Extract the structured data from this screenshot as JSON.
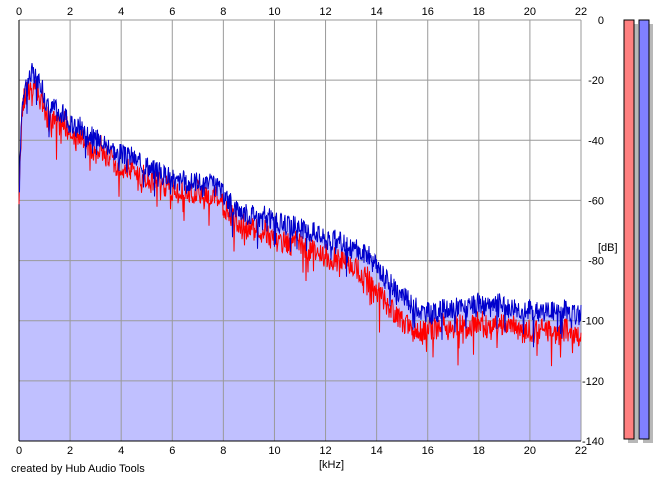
{
  "credit": "created by Hub Audio Tools",
  "chart_data": {
    "type": "line",
    "title": "",
    "xlabel": "[kHz]",
    "ylabel": "[dB]",
    "xlim": [
      0,
      22
    ],
    "ylim": [
      -140,
      0
    ],
    "x_ticks": [
      0,
      2,
      4,
      6,
      8,
      10,
      12,
      14,
      16,
      18,
      20,
      22
    ],
    "y_ticks": [
      0,
      -20,
      -40,
      -60,
      -80,
      -100,
      -120,
      -140
    ],
    "grid": true,
    "fill_color": "#c0c0ff",
    "series": [
      {
        "color": "#0000cc",
        "x": [
          0.0,
          0.05,
          0.1,
          0.2,
          0.3,
          0.4,
          0.5,
          0.6,
          0.7,
          0.8,
          0.9,
          1.0,
          1.2,
          1.4,
          1.6,
          1.8,
          2.0,
          2.2,
          2.4,
          2.6,
          2.8,
          3.0,
          3.2,
          3.4,
          3.6,
          3.8,
          4.0,
          4.2,
          4.4,
          4.6,
          4.8,
          5.0,
          5.2,
          5.4,
          5.6,
          5.8,
          6.0,
          6.2,
          6.4,
          6.6,
          6.8,
          7.0,
          7.2,
          7.4,
          7.6,
          7.8,
          8.0,
          8.2,
          8.4,
          8.6,
          8.8,
          9.0,
          9.2,
          9.4,
          9.6,
          9.8,
          10.0,
          10.2,
          10.4,
          10.6,
          10.8,
          11.0,
          11.2,
          11.4,
          11.6,
          11.8,
          12.0,
          12.2,
          12.4,
          12.6,
          12.8,
          13.0,
          13.2,
          13.4,
          13.6,
          13.8,
          14.0,
          14.2,
          14.4,
          14.6,
          14.8,
          15.0,
          15.2,
          15.4,
          15.6,
          15.8,
          16.0,
          16.2,
          16.4,
          16.6,
          16.8,
          17.0,
          17.2,
          17.4,
          17.6,
          17.8,
          18.0,
          18.2,
          18.4,
          18.6,
          18.8,
          19.0,
          19.2,
          19.4,
          19.6,
          19.8,
          20.0,
          20.2,
          20.4,
          20.6,
          20.8,
          21.0,
          21.2,
          21.4,
          21.6,
          21.8,
          22.0
        ],
        "y": [
          -60,
          -45,
          -30,
          -22,
          -21,
          -19,
          -17,
          -20,
          -18,
          -22,
          -21,
          -26,
          -30,
          -29,
          -32,
          -31,
          -35,
          -36,
          -35,
          -37,
          -38,
          -40,
          -38,
          -42,
          -41,
          -45,
          -44,
          -46,
          -45,
          -47,
          -48,
          -48,
          -50,
          -49,
          -52,
          -51,
          -53,
          -54,
          -53,
          -55,
          -54,
          -53,
          -56,
          -54,
          -55,
          -56,
          -58,
          -60,
          -62,
          -63,
          -64,
          -65,
          -64,
          -66,
          -65,
          -66,
          -67,
          -68,
          -67,
          -69,
          -68,
          -69,
          -70,
          -71,
          -70,
          -72,
          -73,
          -74,
          -73,
          -74,
          -75,
          -76,
          -76,
          -78,
          -77,
          -80,
          -82,
          -84,
          -86,
          -88,
          -90,
          -92,
          -93,
          -95,
          -96,
          -97,
          -97,
          -98,
          -97,
          -96,
          -97,
          -96,
          -95,
          -96,
          -96,
          -95,
          -94,
          -95,
          -96,
          -95,
          -94,
          -95,
          -96,
          -95,
          -96,
          -97,
          -96,
          -97,
          -96,
          -97,
          -96,
          -97,
          -97,
          -96,
          -97,
          -98,
          -98
        ]
      },
      {
        "color": "#ff0000",
        "x": [
          0.0,
          0.05,
          0.1,
          0.2,
          0.3,
          0.4,
          0.5,
          0.6,
          0.7,
          0.8,
          0.9,
          1.0,
          1.2,
          1.4,
          1.6,
          1.8,
          2.0,
          2.2,
          2.4,
          2.6,
          2.8,
          3.0,
          3.2,
          3.4,
          3.6,
          3.8,
          4.0,
          4.2,
          4.4,
          4.6,
          4.8,
          5.0,
          5.2,
          5.4,
          5.6,
          5.8,
          6.0,
          6.2,
          6.4,
          6.6,
          6.8,
          7.0,
          7.2,
          7.4,
          7.6,
          7.8,
          8.0,
          8.2,
          8.4,
          8.6,
          8.8,
          9.0,
          9.2,
          9.4,
          9.6,
          9.8,
          10.0,
          10.2,
          10.4,
          10.6,
          10.8,
          11.0,
          11.2,
          11.4,
          11.6,
          11.8,
          12.0,
          12.2,
          12.4,
          12.6,
          12.8,
          13.0,
          13.2,
          13.4,
          13.6,
          13.8,
          14.0,
          14.2,
          14.4,
          14.6,
          14.8,
          15.0,
          15.2,
          15.4,
          15.6,
          15.8,
          16.0,
          16.2,
          16.4,
          16.6,
          16.8,
          17.0,
          17.2,
          17.4,
          17.6,
          17.8,
          18.0,
          18.2,
          18.4,
          18.6,
          18.8,
          19.0,
          19.2,
          19.4,
          19.6,
          19.8,
          20.0,
          20.2,
          20.4,
          20.6,
          20.8,
          21.0,
          21.2,
          21.4,
          21.6,
          21.8,
          22.0
        ],
        "y": [
          -64,
          -47,
          -33,
          -26,
          -24,
          -23,
          -22,
          -24,
          -23,
          -27,
          -26,
          -30,
          -34,
          -33,
          -35,
          -34,
          -39,
          -40,
          -38,
          -41,
          -42,
          -44,
          -42,
          -46,
          -45,
          -49,
          -48,
          -50,
          -49,
          -51,
          -52,
          -52,
          -54,
          -53,
          -56,
          -55,
          -56,
          -57,
          -57,
          -59,
          -58,
          -57,
          -60,
          -58,
          -59,
          -60,
          -62,
          -64,
          -66,
          -67,
          -68,
          -70,
          -69,
          -71,
          -70,
          -72,
          -73,
          -74,
          -73,
          -75,
          -74,
          -75,
          -76,
          -77,
          -76,
          -78,
          -78,
          -80,
          -79,
          -80,
          -81,
          -82,
          -82,
          -85,
          -84,
          -88,
          -90,
          -92,
          -95,
          -97,
          -99,
          -100,
          -101,
          -103,
          -103,
          -104,
          -102,
          -103,
          -102,
          -101,
          -103,
          -102,
          -101,
          -102,
          -103,
          -101,
          -100,
          -101,
          -103,
          -102,
          -101,
          -102,
          -103,
          -102,
          -103,
          -104,
          -103,
          -104,
          -103,
          -104,
          -103,
          -104,
          -104,
          -103,
          -104,
          -105,
          -104
        ]
      }
    ]
  },
  "level_meters": [
    {
      "channel_color": "#ff8080",
      "level": 1.0
    },
    {
      "channel_color": "#8080ff",
      "level": 1.0
    }
  ]
}
